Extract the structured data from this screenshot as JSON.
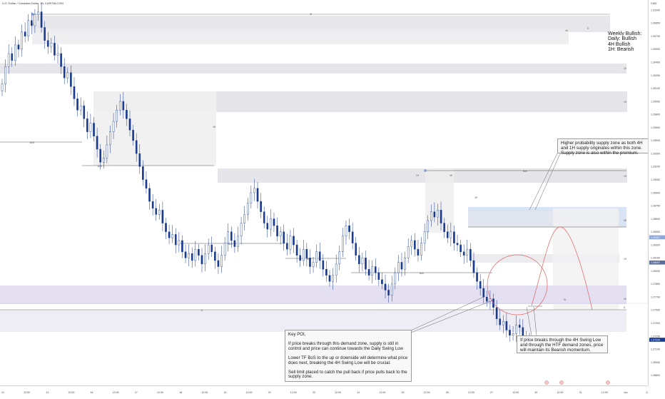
{
  "header": {
    "symbol_title": "U.S. Dollar / Canadian Dollar, 1h, CAPITALCOM",
    "currency": "CAD"
  },
  "colors": {
    "candle": "#1a3a8f",
    "supply_zone": "#e6e6ea",
    "demand_zone": "#e4e0f2",
    "premium_zone": "#d8e3f3",
    "projection": "#e06060",
    "bos_line": "#555555",
    "current_price_badge": "#1a3a8f"
  },
  "notes": {
    "bias": "Weekly Bullish:\nDaily: Bullish\n4H Bullish\n1H: Bearish",
    "supply_note": "Higher probability supply zone as both 4H\nand 1H supply originates within this zone.\nSupply zone is also within the premium.",
    "poi_note": "Key POI,\n\nIf price breaks through this demand zone, supply is still in\ncontrol and price can continue towards the Daily Swing Low\n\nLower TF BoS to the up or downside will determine what price\ndoes next, breaking the 4H Swing Low will be crucial.\n\nSell limit placed to catch the pull back if price pulls back to the\nsupply zone.",
    "breakdown_note": "If price breaks through the 4H Swing Low\nand through the HTF demand zones, price\nwill maintain its Bearish momentum."
  },
  "chart_data": {
    "type": "candlestick",
    "title": "U.S. Dollar / Canadian Dollar, 1h, CAPITALCOM",
    "xlabel": "",
    "ylabel": "",
    "ylim": [
      1.267,
      1.3105
    ],
    "y_ticks": [
      1.31,
      1.3085,
      1.307,
      1.3055,
      1.304,
      1.3025,
      1.301,
      1.2995,
      1.298,
      1.2965,
      1.295,
      1.2935,
      1.292,
      1.2905,
      1.289,
      1.2875,
      1.286,
      1.2845,
      1.283,
      1.2815,
      1.28,
      1.2785,
      1.277,
      1.2755,
      1.274,
      1.2725,
      1.271,
      1.2695,
      1.268
    ],
    "x_tick_labels": [
      "12",
      "12:00",
      "13",
      "12:00",
      "16",
      "12:00",
      "17",
      "12:00",
      "18",
      "12:00",
      "19",
      "12:00",
      "20",
      "12:00",
      "23",
      "12:00",
      "24",
      "12:00",
      "25",
      "12:00",
      "26",
      "12:00",
      "27",
      "12:00",
      "30",
      "12:00",
      "31",
      "12:00",
      "Jun",
      "12:00"
    ],
    "current_price": "1.27209",
    "sell_limit_price": "1.28387",
    "sell_limit_tag": "1.28097",
    "marker_labels": [
      "4H",
      "1H",
      "BoS",
      "SL"
    ],
    "closes": [
      1.3015,
      1.3035,
      1.305,
      1.3042,
      1.306,
      1.3055,
      1.3075,
      1.307,
      1.3088,
      1.3082,
      1.3095,
      1.3098,
      1.308,
      1.3065,
      1.3058,
      1.3062,
      1.3048,
      1.305,
      1.3035,
      1.3022,
      1.3028,
      1.3012,
      1.2998,
      1.2985,
      1.299,
      1.2975,
      1.296,
      1.297,
      1.2955,
      1.294,
      1.2925,
      1.293,
      1.2945,
      1.296,
      1.2972,
      1.2985,
      1.2995,
      1.2985,
      1.2975,
      1.2962,
      1.295,
      1.2935,
      1.292,
      1.2905,
      1.2895,
      1.288,
      1.2872,
      1.2865,
      1.287,
      1.2855,
      1.2845,
      1.2838,
      1.2842,
      1.283,
      1.2835,
      1.2822,
      1.2815,
      1.282,
      1.2812,
      1.2825,
      1.2818,
      1.2808,
      1.282,
      1.283,
      1.2822,
      1.2812,
      1.2805,
      1.2818,
      1.2832,
      1.2845,
      1.2835,
      1.2828,
      1.284,
      1.2855,
      1.2865,
      1.2878,
      1.289,
      1.2895,
      1.288,
      1.2868,
      1.2855,
      1.2848,
      1.286,
      1.2852,
      1.284,
      1.2845,
      1.2832,
      1.2825,
      1.284,
      1.283,
      1.2818,
      1.2812,
      1.2825,
      1.2815,
      1.2805,
      1.281,
      1.2822,
      1.2812,
      1.2802,
      1.2795,
      1.2788,
      1.2795,
      1.2808,
      1.2822,
      1.284,
      1.2852,
      1.2845,
      1.2832,
      1.2818,
      1.2808,
      1.2815,
      1.2802,
      1.2795,
      1.2805,
      1.2798,
      1.279,
      1.2785,
      1.2778,
      1.2772,
      1.2785,
      1.2798,
      1.281,
      1.2802,
      1.2815,
      1.2828,
      1.2835,
      1.2825,
      1.2818,
      1.2832,
      1.2845,
      1.2858,
      1.2868,
      1.2862,
      1.287,
      1.2855,
      1.2845,
      1.2838,
      1.2845,
      1.2832,
      1.283,
      1.2822,
      1.2818,
      1.2825,
      1.2812,
      1.2798,
      1.2788,
      1.278,
      1.277,
      1.2765,
      1.2768,
      1.2758,
      1.2745,
      1.2738,
      1.2742,
      1.2732,
      1.2726,
      1.2728,
      1.2738,
      1.2735,
      1.2725,
      1.2718,
      1.2721
    ]
  },
  "price_axis_labels": [
    "1.31000",
    "1.30850",
    "1.30700",
    "1.30550",
    "1.30400",
    "1.30250",
    "1.30100",
    "1.29950",
    "1.29800",
    "1.29650",
    "1.29500",
    "1.29350",
    "1.29200",
    "1.29050",
    "1.28900",
    "1.28750",
    "1.28600",
    "1.28450",
    "1.28300",
    "1.28150",
    "1.28000",
    "1.27850",
    "1.27700",
    "1.27550",
    "1.27400",
    "1.27250",
    "1.27100",
    "1.26950",
    "1.26800"
  ]
}
